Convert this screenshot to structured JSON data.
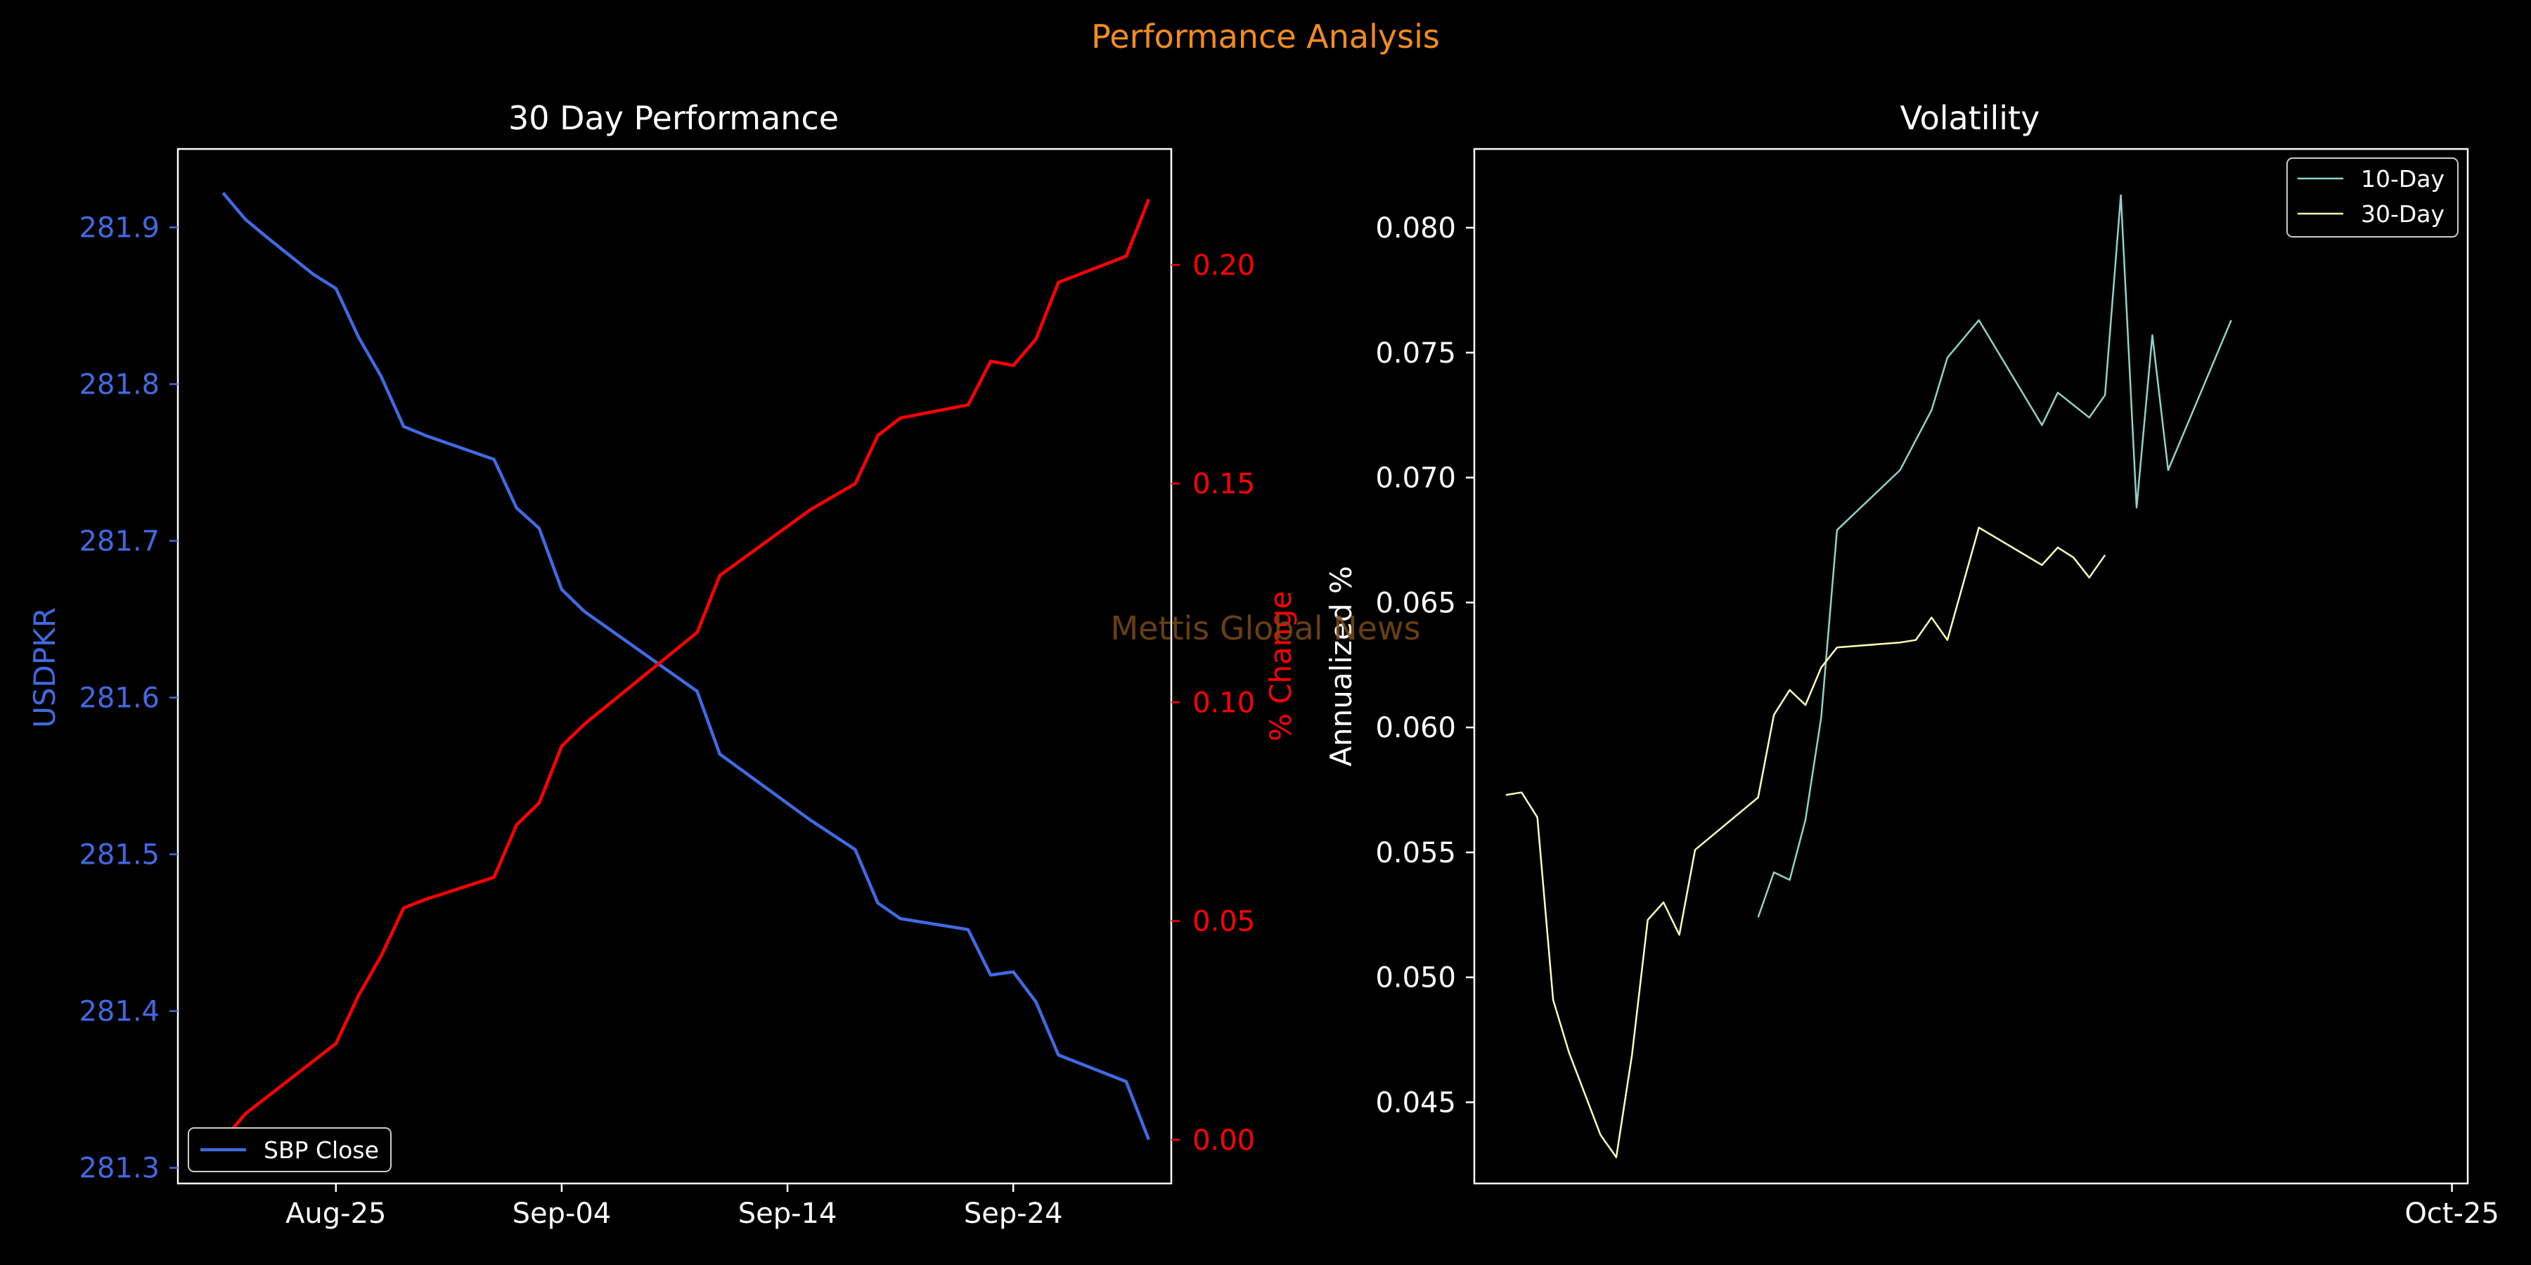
{
  "figure": {
    "suptitle": "Performance Analysis",
    "watermark": "Mettis Global News",
    "colors": {
      "background": "#000000",
      "suptitle": "#f28c1e",
      "watermark": "#7a4a17",
      "usdpkr": "#4169e1",
      "pct_change": "#ff0000",
      "vol10": "#8dd3c7",
      "vol30": "#ffffb3",
      "axes": "#ffffff"
    }
  },
  "chart_data": [
    {
      "type": "line",
      "title": "30 Day Performance",
      "xlabel": "",
      "x_ticks": [
        "Aug-25",
        "Sep-04",
        "Sep-14",
        "Sep-24"
      ],
      "x_tick_dates": [
        "2025-08-25",
        "2025-09-04",
        "2025-09-14",
        "2025-09-24"
      ],
      "x_range": [
        "2025-08-18",
        "2025-10-01"
      ],
      "y_left": {
        "label": "USDPKR",
        "ticks": [
          "281.3",
          "281.4",
          "281.5",
          "281.6",
          "281.7",
          "281.8",
          "281.9"
        ],
        "range": [
          281.29,
          281.95
        ]
      },
      "y_right": {
        "label": "% Change",
        "ticks": [
          "0.00",
          "0.05",
          "0.10",
          "0.15",
          "0.20"
        ],
        "range": [
          -0.01,
          0.2265
        ]
      },
      "legend": {
        "placement": "lower-left",
        "entries": [
          "SBP Close"
        ]
      },
      "x": [
        "2025-08-20",
        "2025-08-21",
        "2025-08-22",
        "2025-08-24",
        "2025-08-25",
        "2025-08-26",
        "2025-08-27",
        "2025-08-28",
        "2025-08-29",
        "2025-09-01",
        "2025-09-02",
        "2025-09-03",
        "2025-09-04",
        "2025-09-05",
        "2025-09-10",
        "2025-09-11",
        "2025-09-15",
        "2025-09-17",
        "2025-09-18",
        "2025-09-19",
        "2025-09-22",
        "2025-09-23",
        "2025-09-24",
        "2025-09-25",
        "2025-09-26",
        "2025-09-29",
        "2025-09-30"
      ],
      "series": [
        {
          "name": "SBP Close",
          "axis": "left",
          "values": [
            281.922,
            281.905,
            281.893,
            281.87,
            281.861,
            281.83,
            281.805,
            281.773,
            281.767,
            281.752,
            281.721,
            281.708,
            281.669,
            281.655,
            281.604,
            281.564,
            281.522,
            281.503,
            281.469,
            281.459,
            281.452,
            281.423,
            281.425,
            281.406,
            281.372,
            281.355,
            281.318
          ]
        },
        {
          "name": "% Change",
          "axis": "right",
          "values": [
            0.0,
            0.006,
            0.01,
            0.018,
            0.022,
            0.033,
            0.042,
            0.053,
            0.055,
            0.06,
            0.072,
            0.077,
            0.09,
            0.095,
            0.116,
            0.129,
            0.144,
            0.15,
            0.161,
            0.165,
            0.168,
            0.178,
            0.177,
            0.183,
            0.196,
            0.202,
            0.215
          ]
        }
      ]
    },
    {
      "type": "line",
      "title": "Volatility",
      "ylabel": "Annualized %",
      "x_ticks": [
        "Oct-25"
      ],
      "x_tick_dates": [
        "2025-10-01"
      ],
      "x_range": [
        "2025-07-31",
        "2025-10-02"
      ],
      "y_ticks": [
        "0.045",
        "0.050",
        "0.055",
        "0.060",
        "0.065",
        "0.070",
        "0.075",
        "0.080"
      ],
      "ylim": [
        0.04175,
        0.08315
      ],
      "legend": {
        "placement": "top-right",
        "entries": [
          "10-Day",
          "30-Day"
        ]
      },
      "x": [
        "2025-08-02",
        "2025-08-03",
        "2025-08-04",
        "2025-08-05",
        "2025-08-06",
        "2025-08-08",
        "2025-08-09",
        "2025-08-10",
        "2025-08-11",
        "2025-08-12",
        "2025-08-13",
        "2025-08-14",
        "2025-08-18",
        "2025-08-19",
        "2025-08-20",
        "2025-08-21",
        "2025-08-22",
        "2025-08-23",
        "2025-08-27",
        "2025-08-28",
        "2025-08-29",
        "2025-08-30",
        "2025-09-01",
        "2025-09-05",
        "2025-09-06",
        "2025-09-07",
        "2025-09-08",
        "2025-09-09",
        "2025-09-10",
        "2025-09-11",
        "2025-09-12",
        "2025-09-13",
        "2025-09-17",
        "2025-09-18",
        "2025-09-19",
        "2025-09-20",
        "2025-09-21",
        "2025-09-22",
        "2025-09-23",
        "2025-09-29",
        "2025-09-30"
      ],
      "series": [
        {
          "name": "10-Day",
          "values": [
            null,
            null,
            null,
            null,
            null,
            null,
            null,
            null,
            null,
            null,
            null,
            null,
            0.0524,
            0.0542,
            0.0539,
            0.0563,
            0.0604,
            0.0679,
            0.0703,
            0.0715,
            0.0727,
            0.0748,
            0.0763,
            0.0721,
            0.0734,
            0.0729,
            0.0724,
            0.0733,
            0.0813,
            0.0688,
            0.0757,
            0.0703,
            0.0763,
            null,
            null,
            null,
            null,
            null,
            null,
            null,
            null
          ]
        },
        {
          "name": "30-Day",
          "values": [
            0.0573,
            0.0574,
            0.0564,
            0.0491,
            0.047,
            0.0437,
            0.0428,
            0.0469,
            0.0523,
            0.053,
            0.0517,
            0.0551,
            0.0572,
            0.0605,
            0.0615,
            0.0609,
            0.0624,
            0.0632,
            0.0634,
            0.0635,
            0.0644,
            0.0635,
            0.068,
            0.0665,
            0.0672,
            0.0668,
            0.066,
            0.0669,
            null,
            null,
            null,
            null,
            null,
            null,
            null,
            null,
            null,
            null,
            null,
            null,
            null
          ]
        }
      ]
    }
  ]
}
